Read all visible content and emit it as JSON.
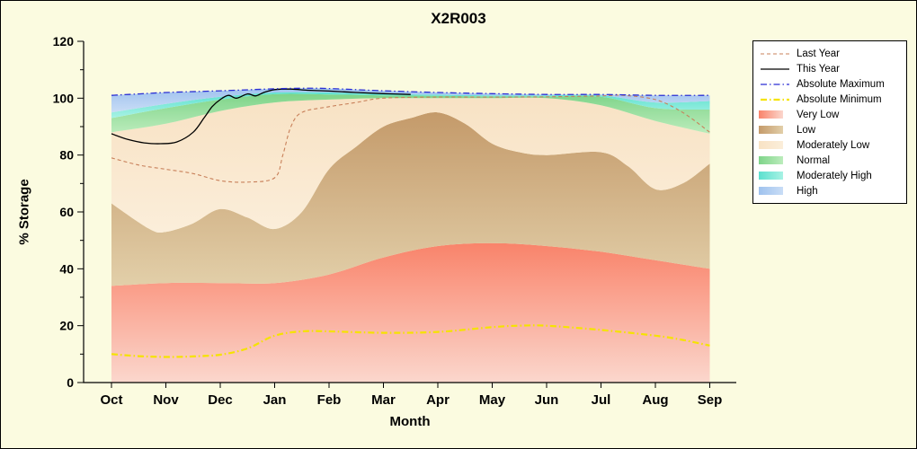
{
  "chart_data": {
    "type": "area",
    "title": "X2R003",
    "xlabel": "Month",
    "ylabel": "% Storage",
    "background": "#fbfbe0",
    "legend_background": "#ffffff",
    "ylim": [
      0,
      120
    ],
    "yticks": [
      0,
      20,
      40,
      60,
      80,
      100,
      120
    ],
    "categories": [
      "Oct",
      "Nov",
      "Dec",
      "Jan",
      "Feb",
      "Mar",
      "Apr",
      "May",
      "Jun",
      "Jul",
      "Aug",
      "Sep"
    ],
    "zones": [
      {
        "name": "Very Low",
        "colors": [
          "#f9836a",
          "#fbd7cd"
        ],
        "x": [
          0,
          1,
          2,
          3,
          4,
          5,
          6,
          7,
          8,
          9,
          10,
          11
        ],
        "top": [
          34,
          35,
          35,
          35,
          38,
          44,
          48,
          49,
          48,
          46,
          43,
          40
        ]
      },
      {
        "name": "Low",
        "colors": [
          "#c49a6a",
          "#e2cfa9"
        ],
        "x": [
          0,
          0.7,
          1,
          1.5,
          2,
          2.5,
          3,
          3.5,
          4,
          4.5,
          5,
          5.5,
          6,
          6.5,
          7,
          7.5,
          8,
          9,
          9.5,
          10,
          10.5,
          11
        ],
        "top": [
          63,
          54,
          53,
          56,
          61,
          58,
          54,
          60,
          75,
          83,
          90,
          93,
          95,
          91,
          84,
          81,
          80,
          81,
          76,
          68,
          70,
          77
        ]
      },
      {
        "name": "Moderately Low",
        "colors": [
          "#f8e2c4",
          "#fbeeda"
        ],
        "x": [
          0,
          1,
          2,
          3,
          4,
          5,
          6,
          7,
          8,
          9,
          10,
          11
        ],
        "top": [
          88,
          91,
          95.5,
          98.5,
          99.5,
          100,
          100,
          100,
          100,
          97.5,
          92,
          87.5
        ]
      },
      {
        "name": "Normal",
        "colors": [
          "#7ed489",
          "#bcecbc"
        ],
        "x": [
          0,
          1,
          2,
          3,
          4,
          5,
          6,
          7,
          8,
          9,
          10,
          11
        ],
        "top": [
          93,
          96.5,
          99.5,
          101.4,
          101.3,
          101,
          100.8,
          100.6,
          100.6,
          100.5,
          96.5,
          96
        ]
      },
      {
        "name": "Moderately High",
        "colors": [
          "#5ce0cf",
          "#a8f2e4"
        ],
        "x": [
          0,
          1,
          2,
          3,
          4,
          5,
          6,
          7,
          8,
          9,
          10,
          11
        ],
        "top": [
          95,
          98,
          100.5,
          102,
          102,
          101.5,
          101.2,
          101,
          101,
          101,
          98.5,
          99
        ]
      },
      {
        "name": "High",
        "colors": [
          "#9fc2ee",
          "#c9ddf6"
        ],
        "x": [
          0,
          0.5,
          1,
          2,
          3,
          3.5,
          4,
          5,
          6,
          7,
          8,
          9,
          10,
          11
        ],
        "top": [
          101,
          101.5,
          102,
          102.6,
          103.3,
          103.5,
          103.4,
          102.6,
          102,
          101.6,
          101.3,
          101.3,
          101,
          101
        ]
      }
    ],
    "lines": [
      {
        "name": "Last Year",
        "color": "#c8805a",
        "width": 1.1,
        "dash": "4 3",
        "x": [
          0,
          0.5,
          1,
          1.5,
          2,
          2.5,
          3,
          3.15,
          3.3,
          3.5,
          4,
          4.5,
          5,
          6,
          7,
          8,
          9,
          9.4,
          10,
          10.5,
          11
        ],
        "y": [
          79,
          76.5,
          75,
          73.5,
          71,
          70.5,
          72,
          80,
          90,
          95,
          97,
          98.5,
          100,
          100.4,
          100.4,
          100.5,
          100.8,
          101,
          99.5,
          95,
          88
        ]
      },
      {
        "name": "This Year",
        "color": "#000000",
        "width": 1.3,
        "dash": "",
        "x": [
          0,
          0.3,
          0.6,
          0.9,
          1.2,
          1.5,
          1.7,
          1.85,
          2,
          2.15,
          2.3,
          2.5,
          2.65,
          2.8,
          3,
          3.3,
          3.6,
          4,
          4.5,
          5,
          5.5
        ],
        "y": [
          87.5,
          85.5,
          84.3,
          84,
          84.6,
          88,
          93,
          97,
          99.5,
          101,
          100,
          101.5,
          100.8,
          102,
          103,
          103.2,
          102.8,
          102.5,
          102,
          101.6,
          101.3
        ]
      },
      {
        "name": "Absolute Maximum",
        "color": "#2b2fd4",
        "width": 1.3,
        "dash": "7 3 1.5 3",
        "x": [
          0,
          0.5,
          1,
          2,
          3,
          3.5,
          4,
          5,
          6,
          7,
          8,
          9,
          10,
          11
        ],
        "y": [
          101,
          101.5,
          102,
          102.6,
          103.3,
          103.5,
          103.4,
          102.6,
          102,
          101.6,
          101.3,
          101.3,
          101,
          101
        ]
      },
      {
        "name": "Absolute Minimum",
        "color": "#f5e300",
        "width": 2.2,
        "dash": "7 3 1.5 3",
        "x": [
          0,
          0.5,
          1,
          1.5,
          2,
          2.5,
          3,
          3.5,
          4,
          5,
          6,
          7,
          7.5,
          8,
          9,
          10,
          10.5,
          11
        ],
        "y": [
          10,
          9.3,
          9,
          9.2,
          9.8,
          12,
          16.5,
          18,
          18,
          17.5,
          17.8,
          19.5,
          20,
          20,
          18.5,
          16.5,
          15,
          13
        ]
      }
    ],
    "legend": {
      "position": "outside-right",
      "entries": [
        "Last Year",
        "This Year",
        "Absolute Maximum",
        "Absolute Minimum",
        "Very Low",
        "Low",
        "Moderately Low",
        "Normal",
        "Moderately High",
        "High"
      ]
    }
  }
}
